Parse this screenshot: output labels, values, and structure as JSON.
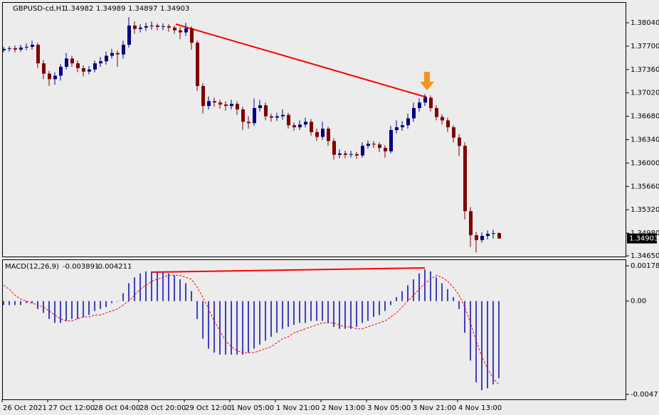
{
  "chart_data": [
    {
      "type": "candlestick",
      "title": "GBPUSD-cd,H1",
      "categories": [
        "26 Oct 2021",
        null,
        null,
        null,
        null,
        null,
        null,
        null,
        "27 Oct 12:00",
        null,
        null,
        null,
        null,
        null,
        null,
        null,
        "28 Oct 04:00",
        null,
        null,
        null,
        null,
        null,
        null,
        null,
        "28 Oct 20:00",
        null,
        null,
        null,
        null,
        null,
        null,
        null,
        "29 Oct 12:00",
        null,
        null,
        null,
        null,
        null,
        null,
        null,
        "1 Nov 05:00",
        null,
        null,
        null,
        null,
        null,
        null,
        null,
        "1 Nov 21:00",
        null,
        null,
        null,
        null,
        null,
        null,
        null,
        "2 Nov 13:00",
        null,
        null,
        null,
        null,
        null,
        null,
        null,
        "3 Nov 05:00",
        null,
        null,
        null,
        null,
        null,
        null,
        null,
        "3 Nov 21:00",
        null,
        null,
        null,
        null,
        null,
        null,
        null,
        "4 Nov 13:00",
        null,
        null,
        null,
        null,
        null,
        null,
        null
      ],
      "open": [
        1.3764,
        1.3766,
        1.3767,
        1.3765,
        1.3768,
        1.3769,
        1.3772,
        1.3745,
        1.373,
        1.3722,
        1.3727,
        1.374,
        1.3752,
        1.3745,
        1.3738,
        1.3733,
        1.3736,
        1.3745,
        1.3748,
        1.3756,
        1.376,
        1.3758,
        1.3772,
        1.38,
        1.3795,
        1.3797,
        1.3799,
        1.38,
        1.3798,
        1.3799,
        1.3797,
        1.3793,
        1.379,
        1.3796,
        1.3775,
        1.3712,
        1.3683,
        1.369,
        1.3688,
        1.3685,
        1.3683,
        1.3686,
        1.3678,
        1.366,
        1.3658,
        1.368,
        1.3684,
        1.3668,
        1.3666,
        1.3668,
        1.367,
        1.3655,
        1.3652,
        1.3656,
        1.366,
        1.3645,
        1.3638,
        1.365,
        1.3632,
        1.3612,
        1.3614,
        1.3612,
        1.3613,
        1.3611,
        1.3625,
        1.3628,
        1.3627,
        1.3622,
        1.3617,
        1.3648,
        1.3652,
        1.3655,
        1.3665,
        1.368,
        1.3688,
        1.3695,
        1.368,
        1.3667,
        1.3662,
        1.3652,
        1.3637,
        1.3625,
        1.353,
        1.3495,
        1.3488,
        1.3494,
        1.3497,
        1.34982
      ],
      "high": [
        1.3769,
        1.377,
        1.3771,
        1.3772,
        1.3774,
        1.3778,
        1.3775,
        1.375,
        1.3734,
        1.3732,
        1.3744,
        1.376,
        1.3756,
        1.3749,
        1.3742,
        1.3741,
        1.3749,
        1.3754,
        1.3762,
        1.3766,
        1.3764,
        1.3778,
        1.3812,
        1.3806,
        1.3802,
        1.3804,
        1.3806,
        1.3803,
        1.3803,
        1.3802,
        1.38,
        1.3798,
        1.3804,
        1.3799,
        1.3778,
        1.3716,
        1.3697,
        1.3695,
        1.3692,
        1.369,
        1.3692,
        1.369,
        1.3682,
        1.3668,
        1.3694,
        1.3692,
        1.3688,
        1.3672,
        1.3673,
        1.3678,
        1.3673,
        1.3659,
        1.3662,
        1.3666,
        1.3664,
        1.365,
        1.366,
        1.3653,
        1.3636,
        1.362,
        1.3618,
        1.3618,
        1.3616,
        1.363,
        1.3633,
        1.3632,
        1.363,
        1.3626,
        1.3654,
        1.3662,
        1.3661,
        1.3672,
        1.3688,
        1.3694,
        1.37,
        1.3698,
        1.3684,
        1.3671,
        1.3666,
        1.3655,
        1.3642,
        1.363,
        1.3536,
        1.35,
        1.3499,
        1.3502,
        1.3503,
        1.34989
      ],
      "low": [
        1.3761,
        1.3762,
        1.3761,
        1.3762,
        1.3764,
        1.3765,
        1.3738,
        1.3722,
        1.3712,
        1.3714,
        1.372,
        1.3736,
        1.374,
        1.3732,
        1.3726,
        1.3729,
        1.3732,
        1.374,
        1.3743,
        1.3752,
        1.374,
        1.3752,
        1.3768,
        1.3788,
        1.379,
        1.3792,
        1.3794,
        1.3793,
        1.3793,
        1.3791,
        1.3788,
        1.378,
        1.3785,
        1.3765,
        1.3705,
        1.3672,
        1.3678,
        1.3682,
        1.3679,
        1.3676,
        1.3678,
        1.367,
        1.3648,
        1.365,
        1.3654,
        1.3675,
        1.3662,
        1.366,
        1.3661,
        1.3663,
        1.365,
        1.3647,
        1.3648,
        1.3652,
        1.364,
        1.3632,
        1.3634,
        1.3625,
        1.3605,
        1.3607,
        1.3607,
        1.3608,
        1.3606,
        1.3608,
        1.3621,
        1.3622,
        1.3616,
        1.3608,
        1.3614,
        1.3643,
        1.3647,
        1.365,
        1.366,
        1.3675,
        1.3683,
        1.3675,
        1.3662,
        1.3656,
        1.3645,
        1.363,
        1.361,
        1.3518,
        1.3478,
        1.347,
        1.3484,
        1.3489,
        1.349,
        1.34897
      ],
      "close": [
        1.3766,
        1.3767,
        1.3765,
        1.3768,
        1.3769,
        1.3772,
        1.3745,
        1.373,
        1.3722,
        1.3727,
        1.374,
        1.3752,
        1.3745,
        1.3738,
        1.3733,
        1.3736,
        1.3745,
        1.3748,
        1.3756,
        1.376,
        1.3758,
        1.3772,
        1.38,
        1.3795,
        1.3797,
        1.3799,
        1.38,
        1.3798,
        1.3799,
        1.3797,
        1.3793,
        1.379,
        1.3796,
        1.3775,
        1.3712,
        1.3683,
        1.369,
        1.3688,
        1.3685,
        1.3683,
        1.3686,
        1.3678,
        1.366,
        1.3658,
        1.368,
        1.3684,
        1.3668,
        1.3666,
        1.3668,
        1.367,
        1.3655,
        1.3652,
        1.3656,
        1.366,
        1.3645,
        1.3638,
        1.365,
        1.3632,
        1.3612,
        1.3614,
        1.3612,
        1.3613,
        1.3611,
        1.3625,
        1.3628,
        1.3627,
        1.3622,
        1.3617,
        1.3648,
        1.3652,
        1.3655,
        1.3665,
        1.368,
        1.3688,
        1.3695,
        1.368,
        1.3667,
        1.3662,
        1.3652,
        1.3637,
        1.3625,
        1.353,
        1.3495,
        1.3488,
        1.3494,
        1.3497,
        1.3498,
        1.34903
      ],
      "up_color": "#000080",
      "down_color": "#800000",
      "ylim": [
        1.3463,
        1.3834
      ],
      "yticks": [
        {
          "value": 1.3804,
          "label": "1.38040"
        },
        {
          "value": 1.377,
          "label": "1.37700"
        },
        {
          "value": 1.3736,
          "label": "1.37360"
        },
        {
          "value": 1.3702,
          "label": "1.37020"
        },
        {
          "value": 1.3668,
          "label": "1.36680"
        },
        {
          "value": 1.3634,
          "label": "1.36340"
        },
        {
          "value": 1.36,
          "label": "1.36000"
        },
        {
          "value": 1.3566,
          "label": "1.35660"
        },
        {
          "value": 1.3532,
          "label": "1.35320"
        },
        {
          "value": 1.3498,
          "label": "1.34980"
        },
        {
          "value": 1.3465,
          "label": "1.34650"
        }
      ]
    },
    {
      "type": "macd",
      "title": "MACD(12,26,9)",
      "histogram": {
        "color": "#3f3fbf",
        "values": [
          -0.0002,
          -0.0002,
          -0.0002,
          -0.0002,
          -0.0001,
          -0.0001,
          -0.0004,
          -0.0006,
          -0.0009,
          -0.0011,
          -0.0011,
          -0.001,
          -0.0009,
          -0.0009,
          -0.0008,
          -0.0007,
          -0.0005,
          -0.0004,
          -0.0003,
          -0.0001,
          0.0,
          0.0004,
          0.0009,
          0.0012,
          0.0014,
          0.0015,
          0.0015,
          0.0015,
          0.0015,
          0.0014,
          0.0013,
          0.0011,
          0.0009,
          0.0005,
          -0.0009,
          -0.0019,
          -0.0024,
          -0.0026,
          -0.0027,
          -0.0027,
          -0.0027,
          -0.0027,
          -0.0027,
          -0.0026,
          -0.0024,
          -0.0022,
          -0.002,
          -0.0018,
          -0.0016,
          -0.0014,
          -0.0013,
          -0.0012,
          -0.0011,
          -0.0011,
          -0.001,
          -0.001,
          -0.001,
          -0.0011,
          -0.0013,
          -0.0014,
          -0.0014,
          -0.0014,
          -0.0013,
          -0.0011,
          -0.001,
          -0.0008,
          -0.0007,
          -0.0005,
          -0.0002,
          0.0002,
          0.0005,
          0.0008,
          0.0011,
          0.0014,
          0.0016,
          0.0015,
          0.0012,
          0.0009,
          0.0006,
          0.0002,
          -0.0004,
          -0.0016,
          -0.003,
          -0.0041,
          -0.0045,
          -0.0044,
          -0.0042,
          -0.003891
        ]
      },
      "signal": {
        "color": "#ff0000",
        "values": [
          0.0008,
          0.0006,
          0.0003,
          0.0001,
          0.0,
          -0.0001,
          -0.0002,
          -0.0003,
          -0.0005,
          -0.0007,
          -0.0009,
          -0.001,
          -0.001,
          -0.0009,
          -0.0008,
          -0.0008,
          -0.0007,
          -0.0007,
          -0.0006,
          -0.0005,
          -0.0004,
          -0.0002,
          0.0,
          0.0003,
          0.0006,
          0.0008,
          0.001,
          0.0011,
          0.0012,
          0.0013,
          0.0013,
          0.0013,
          0.0012,
          0.0011,
          0.0007,
          0.0002,
          -0.0004,
          -0.001,
          -0.0015,
          -0.002,
          -0.0023,
          -0.0025,
          -0.0026,
          -0.0026,
          -0.0026,
          -0.0025,
          -0.0024,
          -0.0023,
          -0.0021,
          -0.0019,
          -0.0018,
          -0.0016,
          -0.0015,
          -0.0014,
          -0.0013,
          -0.0012,
          -0.0011,
          -0.0011,
          -0.0011,
          -0.0012,
          -0.0013,
          -0.0013,
          -0.0014,
          -0.0014,
          -0.0013,
          -0.0012,
          -0.0011,
          -0.001,
          -0.0008,
          -0.0006,
          -0.0003,
          0.0,
          0.0003,
          0.0006,
          0.0009,
          0.0011,
          0.0013,
          0.0012,
          0.001,
          0.0007,
          0.0003,
          -0.0003,
          -0.0011,
          -0.002,
          -0.0028,
          -0.0034,
          -0.0039,
          -0.004211
        ]
      },
      "ylim": [
        -0.00496,
        0.00207
      ],
      "yticks": [
        0.001782,
        {
          "value": 0,
          "label": "0.00"
        },
        -0.004711
      ]
    }
  ]
}
